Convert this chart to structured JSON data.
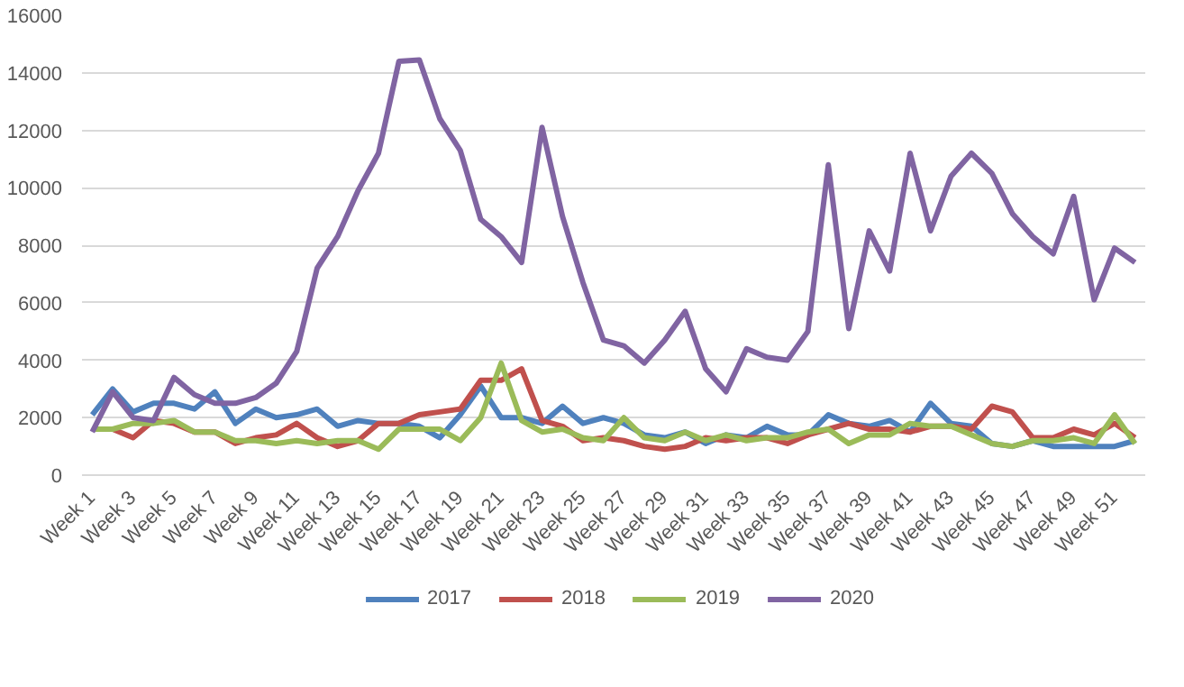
{
  "chart_data": {
    "type": "line",
    "categories": [
      "Week 1",
      null,
      "Week 3",
      null,
      "Week 5",
      null,
      "Week 7",
      null,
      "Week 9",
      null,
      "Week 11",
      null,
      "Week 13",
      null,
      "Week 15",
      null,
      "Week 17",
      null,
      "Week 19",
      null,
      "Week 21",
      null,
      "Week 23",
      null,
      "Week 25",
      null,
      "Week 27",
      null,
      "Week 29",
      null,
      "Week 31",
      null,
      "Week 33",
      null,
      "Week 35",
      null,
      "Week 37",
      null,
      "Week 39",
      null,
      "Week 41",
      null,
      "Week 43",
      null,
      "Week 45",
      null,
      "Week 47",
      null,
      "Week 49",
      null,
      "Week 51",
      null
    ],
    "series": [
      {
        "name": "2017",
        "color": "#4f81bd",
        "values": [
          2100,
          3000,
          2200,
          2500,
          2500,
          2300,
          2900,
          1800,
          2300,
          2000,
          2100,
          2300,
          1700,
          1900,
          1800,
          1800,
          1700,
          1300,
          2100,
          3100,
          2000,
          2000,
          1800,
          2400,
          1800,
          2000,
          1800,
          1400,
          1300,
          1500,
          1100,
          1400,
          1300,
          1700,
          1400,
          1400,
          2100,
          1800,
          1700,
          1900,
          1500,
          2500,
          1800,
          1700,
          1100,
          1000,
          1200,
          1000,
          1000,
          1000,
          1000,
          1200
        ]
      },
      {
        "name": "2018",
        "color": "#c0504d",
        "values": [
          1600,
          1600,
          1300,
          1900,
          1800,
          1500,
          1500,
          1100,
          1300,
          1400,
          1800,
          1300,
          1000,
          1200,
          1800,
          1800,
          2100,
          2200,
          2300,
          3300,
          3300,
          3700,
          1900,
          1700,
          1200,
          1300,
          1200,
          1000,
          900,
          1000,
          1300,
          1200,
          1300,
          1300,
          1100,
          1400,
          1600,
          1800,
          1600,
          1600,
          1500,
          1700,
          1700,
          1600,
          2400,
          2200,
          1300,
          1300,
          1600,
          1400,
          1800,
          1300
        ]
      },
      {
        "name": "2019",
        "color": "#9bbb59",
        "values": [
          1600,
          1600,
          1800,
          1800,
          1900,
          1500,
          1500,
          1200,
          1200,
          1100,
          1200,
          1100,
          1200,
          1200,
          900,
          1600,
          1600,
          1600,
          1200,
          2000,
          3900,
          1900,
          1500,
          1600,
          1300,
          1200,
          2000,
          1300,
          1200,
          1500,
          1200,
          1400,
          1200,
          1300,
          1300,
          1500,
          1600,
          1100,
          1400,
          1400,
          1800,
          1700,
          1700,
          1400,
          1100,
          1000,
          1200,
          1200,
          1300,
          1100,
          2100,
          1100
        ]
      },
      {
        "name": "2020",
        "color": "#8064a2",
        "values": [
          1500,
          2900,
          2000,
          1900,
          3400,
          2800,
          2500,
          2500,
          2700,
          3200,
          4300,
          7200,
          8300,
          9900,
          11200,
          14400,
          14450,
          12400,
          11300,
          8900,
          8300,
          7400,
          12100,
          9000,
          6700,
          4700,
          4500,
          3900,
          4700,
          5700,
          3700,
          2900,
          4400,
          4100,
          4000,
          5000,
          10800,
          5100,
          8500,
          7100,
          11200,
          8500,
          10400,
          11200,
          10500,
          9100,
          8300,
          7700,
          9700,
          6100,
          7900,
          7400
        ]
      }
    ],
    "ylim": [
      0,
      16000
    ],
    "yticks": [
      0,
      2000,
      4000,
      6000,
      8000,
      10000,
      12000,
      14000,
      16000
    ],
    "grid": "y",
    "legend": "bottom",
    "marker": "none",
    "line_style": "solid"
  }
}
